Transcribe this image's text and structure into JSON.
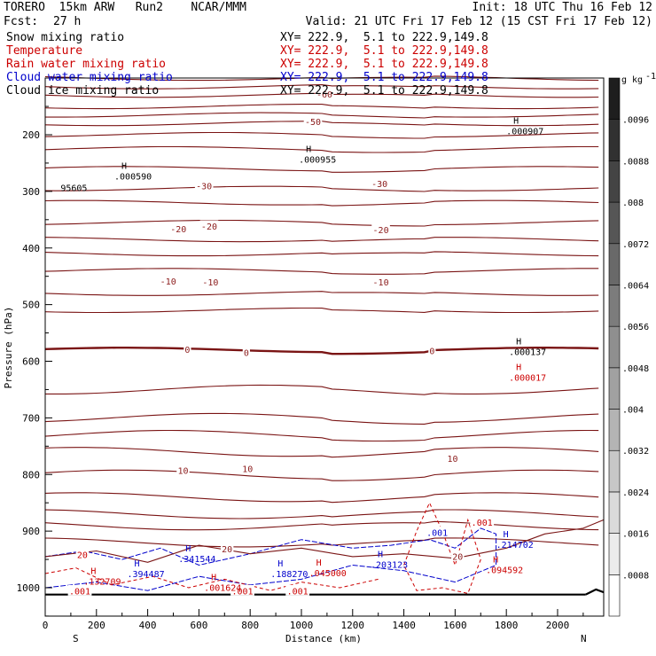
{
  "header": {
    "model": "TORERO  15km ARW   Run2    NCAR/MMM",
    "init": "Init: 18 UTC Thu 16 Feb 12",
    "fcst_label": "Fcst:",
    "fcst_value": "27 h",
    "valid": "Valid: 21 UTC Fri 17 Feb 12 (15 CST Fri 17 Feb 12)"
  },
  "legend": [
    {
      "name": "Snow mixing ratio",
      "xy": "XY= 222.9,  5.1 to 222.9,149.8",
      "color": "#000000"
    },
    {
      "name": "Temperature",
      "xy": "XY= 222.9,  5.1 to 222.9,149.8",
      "color": "#cc0000"
    },
    {
      "name": "Rain water mixing ratio",
      "xy": "XY= 222.9,  5.1 to 222.9,149.8",
      "color": "#cc0000"
    },
    {
      "name": "Cloud water mixing ratio",
      "xy": "XY= 222.9,  5.1 to 222.9,149.8",
      "color": "#0000cc"
    },
    {
      "name": "Cloud ice mixing ratio",
      "xy": "XY= 222.9,  5.1 to 222.9,149.8",
      "color": "#000000"
    }
  ],
  "chart_data": {
    "type": "cross-section contour",
    "xlabel": "Distance (km)",
    "ylabel": "Pressure (hPa)",
    "xlim": [
      0,
      2180
    ],
    "ylim": [
      1050,
      80
    ],
    "x_ticks": [
      0,
      200,
      400,
      600,
      800,
      1000,
      1200,
      1400,
      1600,
      1800,
      2000
    ],
    "y_ticks": [
      200,
      300,
      400,
      500,
      600,
      700,
      800,
      900,
      1000
    ],
    "end_labels": {
      "left": "S",
      "right": "N"
    },
    "colorbar": {
      "units": "g kg",
      "units_exp": "-1",
      "levels": [
        ".0008",
        ".0016",
        ".0024",
        ".0032",
        ".004",
        ".0048",
        ".0056",
        ".0064",
        ".0072",
        ".008",
        ".0088",
        ".0096"
      ]
    },
    "temperature_isotherms": [
      {
        "label": "-60",
        "p": 130,
        "bold": false
      },
      {
        "label": "-50",
        "p": 180,
        "bold": false
      },
      {
        "label": "-30",
        "p": 295,
        "bold": false
      },
      {
        "label": "-20",
        "p": 355,
        "bold": false
      },
      {
        "label": "-10",
        "p": 440,
        "bold": false
      },
      {
        "label": "0",
        "p": 580,
        "bold": true
      },
      {
        "label": "10",
        "p": 760,
        "bold": false
      },
      {
        "label": "20",
        "p": 920,
        "bold": false
      }
    ],
    "contour_labels": [
      {
        "text": "-60",
        "x": 1090,
        "p": 129,
        "color": "#8b1a1a"
      },
      {
        "text": "-50",
        "x": 1045,
        "p": 177,
        "color": "#8b1a1a"
      },
      {
        "text": "-30",
        "x": 620,
        "p": 291,
        "color": "#8b1a1a"
      },
      {
        "text": "-30",
        "x": 1305,
        "p": 287,
        "color": "#8b1a1a"
      },
      {
        "text": "-20",
        "x": 520,
        "p": 367,
        "color": "#8b1a1a"
      },
      {
        "text": "-20",
        "x": 640,
        "p": 362,
        "color": "#8b1a1a"
      },
      {
        "text": "-20",
        "x": 1310,
        "p": 368,
        "color": "#8b1a1a"
      },
      {
        "text": "-10",
        "x": 480,
        "p": 459,
        "color": "#8b1a1a"
      },
      {
        "text": "-10",
        "x": 645,
        "p": 461,
        "color": "#8b1a1a"
      },
      {
        "text": "-10",
        "x": 1310,
        "p": 461,
        "color": "#8b1a1a"
      },
      {
        "text": "0",
        "x": 555,
        "p": 580,
        "color": "#8b1a1a"
      },
      {
        "text": "0",
        "x": 785,
        "p": 585,
        "color": "#8b1a1a"
      },
      {
        "text": "0",
        "x": 1510,
        "p": 582,
        "color": "#8b1a1a"
      },
      {
        "text": "10",
        "x": 538,
        "p": 793,
        "color": "#8b1a1a"
      },
      {
        "text": "10",
        "x": 790,
        "p": 790,
        "color": "#8b1a1a"
      },
      {
        "text": "10",
        "x": 1590,
        "p": 772,
        "color": "#8b1a1a"
      },
      {
        "text": "20",
        "x": 145,
        "p": 942,
        "color": "#cc0000"
      },
      {
        "text": "20",
        "x": 710,
        "p": 932,
        "color": "#8b1a1a"
      },
      {
        "text": "20",
        "x": 1610,
        "p": 945,
        "color": "#8b1a1a"
      },
      {
        "text": ".001",
        "x": 1705,
        "p": 885,
        "color": "#cc0000"
      },
      {
        "text": ".001",
        "x": 1530,
        "p": 903,
        "color": "#0000cc"
      },
      {
        "text": ".001",
        "x": 135,
        "p": 1006,
        "color": "#cc0000"
      },
      {
        "text": ".001",
        "x": 770,
        "p": 1006,
        "color": "#cc0000"
      },
      {
        "text": ".001",
        "x": 985,
        "p": 1006,
        "color": "#cc0000"
      }
    ],
    "extrema": [
      {
        "mark": "H",
        "value": ".000907",
        "x": 1800,
        "p": 190,
        "color": "#000000"
      },
      {
        "mark": "H",
        "value": ".000955",
        "x": 990,
        "p": 240,
        "color": "#000000"
      },
      {
        "mark": "H",
        "value": ".000590",
        "x": 270,
        "p": 270,
        "color": "#000000"
      },
      {
        "mark": "",
        "value": "95605",
        "x": 60,
        "p": 290,
        "color": "#000000"
      },
      {
        "mark": "H",
        "value": ".000137",
        "x": 1810,
        "p": 580,
        "color": "#000000"
      },
      {
        "mark": "H",
        "value": ".000017",
        "x": 1810,
        "p": 625,
        "color": "#cc0000"
      },
      {
        "mark": "H",
        "value": ".341544",
        "x": 520,
        "p": 945,
        "color": "#0000cc"
      },
      {
        "mark": "H",
        "value": ".394487",
        "x": 320,
        "p": 972,
        "color": "#0000cc"
      },
      {
        "mark": "H",
        "value": ".132709",
        "x": 150,
        "p": 985,
        "color": "#cc0000"
      },
      {
        "mark": "H",
        "value": ".001624",
        "x": 620,
        "p": 996,
        "color": "#cc0000"
      },
      {
        "mark": "H",
        "value": ".188270",
        "x": 880,
        "p": 972,
        "color": "#0000cc"
      },
      {
        "mark": "H",
        "value": ".045000",
        "x": 1030,
        "p": 970,
        "color": "#cc0000"
      },
      {
        "mark": "H",
        "value": ".203123",
        "x": 1270,
        "p": 955,
        "color": "#0000cc"
      },
      {
        "mark": "H",
        "value": ".214702",
        "x": 1760,
        "p": 920,
        "color": "#0000cc"
      },
      {
        "mark": "H",
        "value": ".094592",
        "x": 1720,
        "p": 965,
        "color": "#cc0000"
      }
    ]
  }
}
